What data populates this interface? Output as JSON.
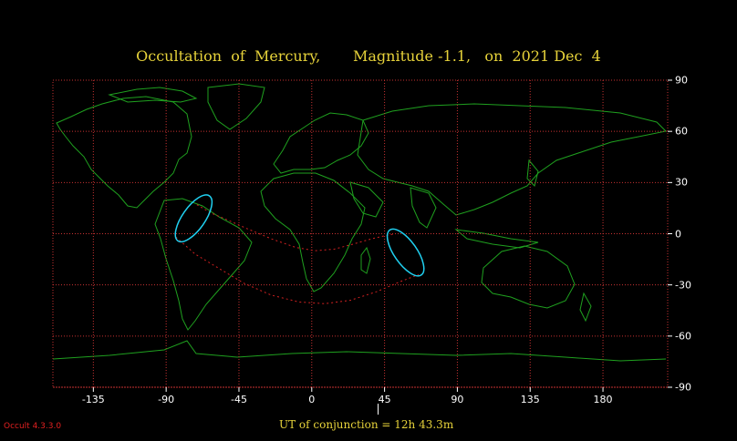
{
  "title": {
    "subject": "Occultation  of  Mercury,",
    "magnitude": "Magnitude -1.1,",
    "date": "on  2021 Dec  4"
  },
  "axes": {
    "lon_ticks": [
      "-135",
      "-90",
      "-45",
      "0",
      "45",
      "90",
      "135",
      "180"
    ],
    "lon_values": [
      -135,
      -90,
      -45,
      0,
      45,
      90,
      135,
      180
    ],
    "lat_ticks": [
      "90",
      "60",
      "30",
      "0",
      "-30",
      "-60",
      "-90"
    ],
    "lat_values": [
      90,
      60,
      30,
      0,
      -30,
      -60,
      -90
    ],
    "lon_range": [
      -160,
      220
    ],
    "lat_range": [
      -90,
      90
    ]
  },
  "conjunction": {
    "label": "UT of conjunction = 12h 43.3m",
    "longitude": 41
  },
  "version": "Occult 4.3.3.0",
  "colors": {
    "background": "#000000",
    "grid": "#c83232",
    "coast": "#1fa01f",
    "path": "#d02020",
    "ellipse": "#20d0f0",
    "title": "#e6d23a"
  },
  "paths": {
    "north_limit": [
      [
        -71,
        17
      ],
      [
        -62,
        12
      ],
      [
        -52,
        8
      ],
      [
        -40,
        3
      ],
      [
        -25,
        -3
      ],
      [
        -10,
        -8
      ],
      [
        2,
        -10
      ],
      [
        14,
        -9
      ],
      [
        26,
        -6
      ],
      [
        37,
        -3
      ],
      [
        46,
        -1
      ],
      [
        52,
        0
      ]
    ],
    "south_limit": [
      [
        -84,
        -2
      ],
      [
        -72,
        -12
      ],
      [
        -58,
        -20
      ],
      [
        -42,
        -29
      ],
      [
        -25,
        -36
      ],
      [
        -8,
        -40
      ],
      [
        8,
        -41
      ],
      [
        24,
        -39
      ],
      [
        40,
        -34
      ],
      [
        55,
        -28
      ],
      [
        66,
        -24
      ]
    ]
  },
  "ellipses": [
    {
      "name": "west-limb-ellipse",
      "lon": -73,
      "lat": 9,
      "rx_deg": 7,
      "ry_deg": 17,
      "rotate": 35
    },
    {
      "name": "east-limb-ellipse",
      "lon": 58,
      "lat": -11,
      "rx_deg": 7,
      "ry_deg": 17,
      "rotate": -35
    }
  ]
}
